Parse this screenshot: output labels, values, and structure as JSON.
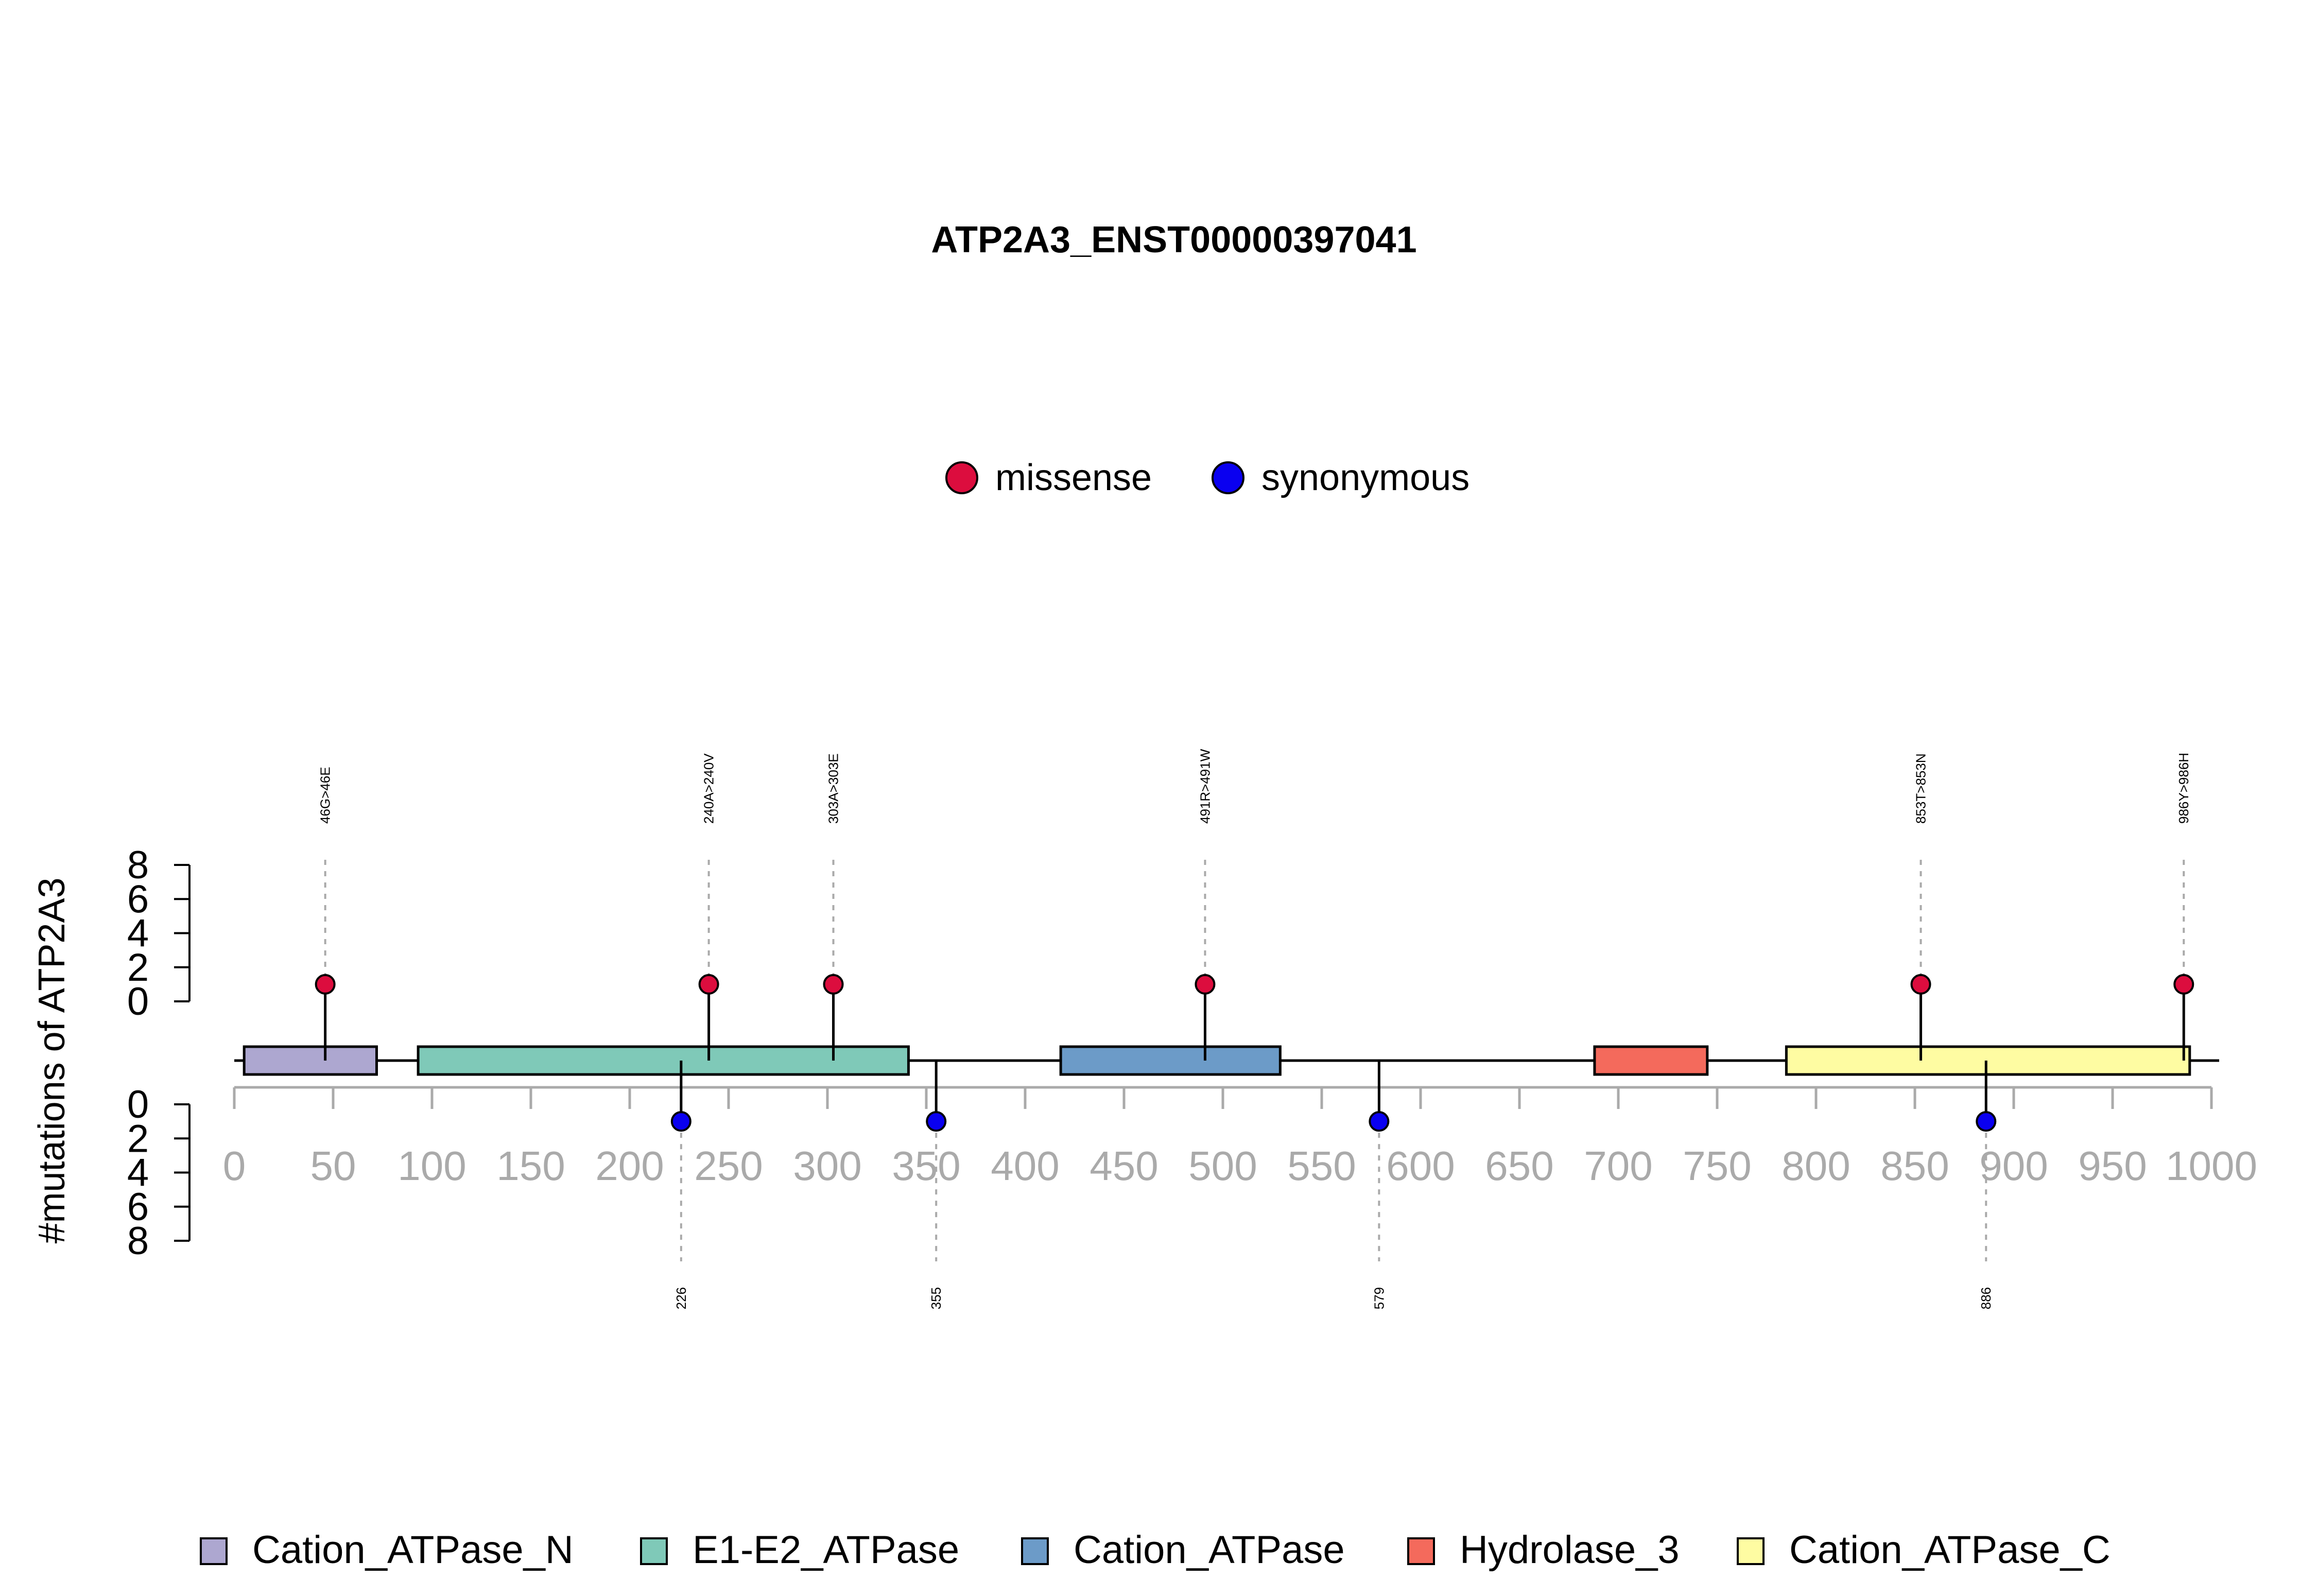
{
  "chart_data": {
    "type": "lollipop",
    "title": "ATP2A3_ENST00000397041",
    "ylabel": "#mutations of ATP2A3",
    "xlim": [
      0,
      1000
    ],
    "x_ticks": [
      0,
      50,
      100,
      150,
      200,
      250,
      300,
      350,
      400,
      450,
      500,
      550,
      600,
      650,
      700,
      750,
      800,
      850,
      900,
      950,
      1000
    ],
    "y_ticks_upper": [
      0,
      2,
      4,
      6,
      8
    ],
    "y_ticks_lower": [
      0,
      2,
      4,
      6,
      8
    ],
    "ylim": [
      0,
      8
    ],
    "mutation_legend": [
      {
        "name": "missense",
        "color": "#DC0D3E"
      },
      {
        "name": "synonymous",
        "color": "#0A00F0"
      }
    ],
    "domains": [
      {
        "name": "Cation_ATPase_N",
        "start": 5,
        "end": 72,
        "color": "#ADA7D0"
      },
      {
        "name": "E1-E2_ATPase",
        "start": 93,
        "end": 341,
        "color": "#7FC9B8"
      },
      {
        "name": "Cation_ATPase",
        "start": 418,
        "end": 529,
        "color": "#6C9BC8"
      },
      {
        "name": "Hydrolase_3",
        "start": 688,
        "end": 745,
        "color": "#F46A5C"
      },
      {
        "name": "Cation_ATPase_C",
        "start": 785,
        "end": 989,
        "color": "#FEFCA2"
      }
    ],
    "mutations_upper": [
      {
        "pos": 46,
        "label": "46G>46E",
        "count": 1,
        "type": "missense"
      },
      {
        "pos": 240,
        "label": "240A>240V",
        "count": 1,
        "type": "missense"
      },
      {
        "pos": 303,
        "label": "303A>303E",
        "count": 1,
        "type": "missense"
      },
      {
        "pos": 491,
        "label": "491R>491W",
        "count": 1,
        "type": "missense"
      },
      {
        "pos": 853,
        "label": "853T>853N",
        "count": 1,
        "type": "missense"
      },
      {
        "pos": 986,
        "label": "986Y>986H",
        "count": 1,
        "type": "missense"
      }
    ],
    "mutations_lower": [
      {
        "pos": 226,
        "label": "226",
        "count": 1,
        "type": "synonymous"
      },
      {
        "pos": 355,
        "label": "355",
        "count": 1,
        "type": "synonymous"
      },
      {
        "pos": 579,
        "label": "579",
        "count": 1,
        "type": "synonymous"
      },
      {
        "pos": 886,
        "label": "886",
        "count": 1,
        "type": "synonymous"
      }
    ]
  }
}
